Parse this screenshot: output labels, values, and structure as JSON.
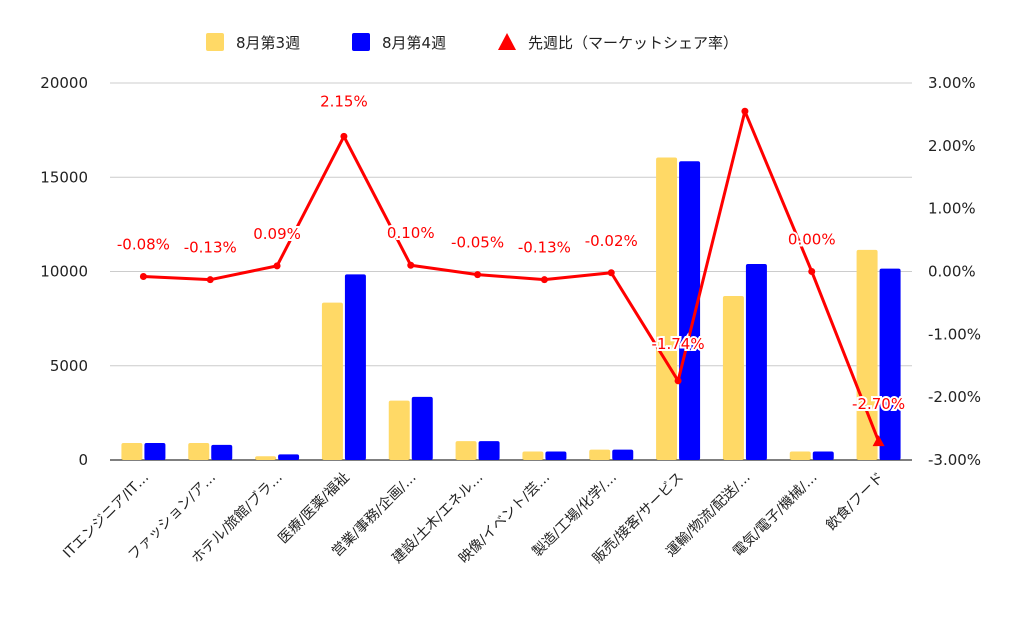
{
  "chart_data": {
    "type": "bar",
    "categories": [
      "ITエンジニア/IT…",
      "ファッション/ア…",
      "ホテル/旅館/ブラ…",
      "医療/医薬/福祉",
      "営業/事務/企画/…",
      "建設/土木/エネル…",
      "映像/イベント/芸…",
      "製造/工場/化学/…",
      "販売/接客/サービス",
      "運輸/物流/配送/…",
      "電気/電子/機械/…",
      "飲食/フード"
    ],
    "series": [
      {
        "name": "8月第3週",
        "kind": "bar",
        "axis": "left",
        "color": "#ffd966",
        "values": [
          900,
          900,
          200,
          8350,
          3150,
          1000,
          450,
          550,
          16050,
          8700,
          450,
          11150
        ]
      },
      {
        "name": "8月第4週",
        "kind": "bar",
        "axis": "left",
        "color": "#0000ff",
        "values": [
          900,
          800,
          300,
          9850,
          3350,
          1000,
          450,
          550,
          15850,
          10400,
          450,
          10150
        ]
      },
      {
        "name": "先週比（マーケットシェア率）",
        "kind": "line",
        "axis": "right",
        "color": "#ff0000",
        "values": [
          -0.08,
          -0.13,
          0.09,
          2.15,
          0.1,
          -0.05,
          -0.13,
          -0.02,
          -1.74,
          2.55,
          0.0,
          -2.7
        ],
        "labels": [
          "-0.08%",
          "-0.13%",
          "0.09%",
          "2.15%",
          "0.10%",
          "-0.05%",
          "-0.13%",
          "-0.02%",
          "-1.74%",
          "",
          "0.00%",
          "-2.70%"
        ]
      }
    ],
    "y_left": {
      "range": [
        0,
        20000
      ],
      "ticks": [
        "0",
        "5000",
        "10000",
        "15000",
        "20000"
      ]
    },
    "y_right": {
      "range": [
        -3.0,
        3.0
      ],
      "ticks": [
        "-3.00%",
        "-2.00%",
        "-1.00%",
        "0.00%",
        "1.00%",
        "2.00%",
        "3.00%"
      ]
    },
    "grid": true,
    "legend_position": "top-center",
    "title": "",
    "xlabel": "",
    "ylabel": ""
  }
}
